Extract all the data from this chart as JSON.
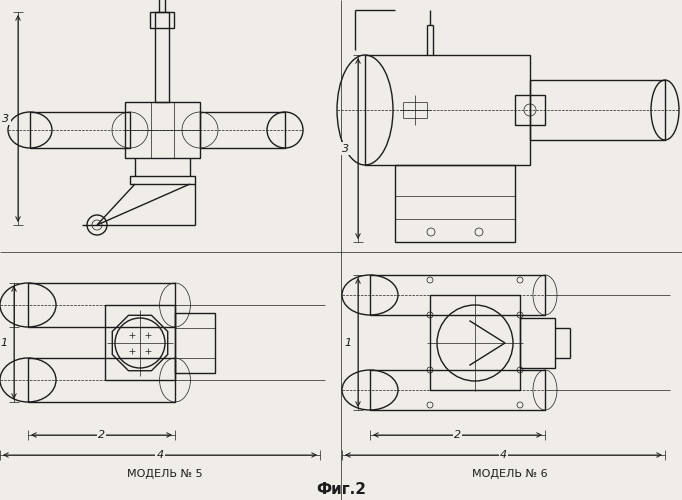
{
  "title": "Фиг.2",
  "model5_label": "МОДЕЛЬ № 5",
  "model6_label": "МОДЕЛЬ № 6",
  "bg_color": "#f0ede8",
  "line_color": "#1c1c1c",
  "lw": 1.0,
  "tlw": 0.5
}
